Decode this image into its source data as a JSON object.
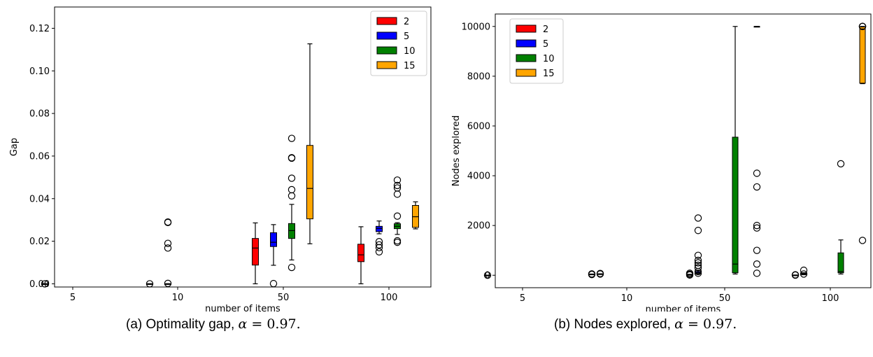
{
  "colors": {
    "2": "#ff0000",
    "5": "#0000ff",
    "10": "#008000",
    "15": "#ffa500"
  },
  "chart_data": [
    {
      "type": "box",
      "caption": {
        "prefix": "(a) Optimality gap, ",
        "alpha_symbol": "α",
        "alpha_value": " = 0.97."
      },
      "xlabel": "number of items",
      "ylabel": "Gap",
      "categories": [
        "5",
        "10",
        "50",
        "100"
      ],
      "ylim": [
        -0.0015,
        0.13
      ],
      "yticks": [
        "0.00",
        "0.02",
        "0.04",
        "0.06",
        "0.08",
        "0.10",
        "0.12"
      ],
      "legend_position": "top-right",
      "series": [
        {
          "name": "2",
          "boxes": [
            {
              "category": "5",
              "whislo": 0,
              "q1": 0,
              "med": 0,
              "q3": 0,
              "whishi": 0,
              "fliers": [
                0
              ]
            },
            {
              "category": "10",
              "whislo": 0,
              "q1": 0,
              "med": 0,
              "q3": 0,
              "whishi": 0,
              "fliers": [
                0
              ]
            },
            {
              "category": "50",
              "whislo": 0.0,
              "q1": 0.0088,
              "med": 0.0168,
              "q3": 0.0213,
              "whishi": 0.0286,
              "fliers": []
            },
            {
              "category": "100",
              "whislo": 0.0,
              "q1": 0.0104,
              "med": 0.0136,
              "q3": 0.0186,
              "whishi": 0.0268,
              "fliers": []
            }
          ]
        },
        {
          "name": "5",
          "boxes": [
            {
              "category": "10",
              "whislo": 0,
              "q1": 0,
              "med": 0,
              "q3": 0,
              "whishi": 0,
              "fliers": [
                0.0288,
                0.029,
                0.019,
                0.0168,
                0.0002
              ]
            },
            {
              "category": "50",
              "whislo": 0.0087,
              "q1": 0.0175,
              "med": 0.0195,
              "q3": 0.024,
              "whishi": 0.0278,
              "fliers": [
                0.0001
              ]
            },
            {
              "category": "100",
              "whislo": 0.0235,
              "q1": 0.0245,
              "med": 0.026,
              "q3": 0.027,
              "whishi": 0.0295,
              "fliers": [
                0.0198,
                0.0183,
                0.017,
                0.015
              ]
            }
          ]
        },
        {
          "name": "10",
          "boxes": [
            {
              "category": "50",
              "whislo": 0.0112,
              "q1": 0.0213,
              "med": 0.025,
              "q3": 0.0283,
              "whishi": 0.0373,
              "fliers": [
                0.0683,
                0.0592,
                0.059,
                0.0496,
                0.0442,
                0.0413,
                0.0077
              ]
            },
            {
              "category": "100",
              "whislo": 0.0232,
              "q1": 0.0259,
              "med": 0.027,
              "q3": 0.0282,
              "whishi": 0.0287,
              "fliers": [
                0.0487,
                0.0462,
                0.045,
                0.0421,
                0.0318,
                0.0202,
                0.0195
              ]
            }
          ]
        },
        {
          "name": "15",
          "boxes": [
            {
              "category": "50",
              "whislo": 0.0188,
              "q1": 0.0305,
              "med": 0.0448,
              "q3": 0.065,
              "whishi": 0.1127,
              "fliers": []
            },
            {
              "category": "100",
              "whislo": 0.0258,
              "q1": 0.0265,
              "med": 0.0315,
              "q3": 0.0368,
              "whishi": 0.0385,
              "fliers": []
            }
          ]
        }
      ]
    },
    {
      "type": "box",
      "caption": {
        "prefix": "(b) Nodes explored, ",
        "alpha_symbol": "α",
        "alpha_value": " = 0.97."
      },
      "xlabel": "number of items",
      "ylabel": "Nodes explored",
      "categories": [
        "5",
        "10",
        "50",
        "100"
      ],
      "ylim": [
        -500,
        10500
      ],
      "yticks": [
        "0",
        "2000",
        "4000",
        "6000",
        "8000",
        "10000"
      ],
      "legend_position": "top-left",
      "series": [
        {
          "name": "2",
          "boxes": [
            {
              "category": "5",
              "whislo": 1,
              "q1": 1,
              "med": 1,
              "q3": 1,
              "whishi": 1,
              "fliers": [
                1
              ]
            },
            {
              "category": "10",
              "whislo": 30,
              "q1": 35,
              "med": 40,
              "q3": 45,
              "whishi": 50,
              "fliers": [
                30,
                55
              ]
            },
            {
              "category": "50",
              "whislo": 10,
              "q1": 20,
              "med": 25,
              "q3": 30,
              "whishi": 40,
              "fliers": [
                10,
                40,
                80
              ]
            },
            {
              "category": "100",
              "whislo": 1,
              "q1": 3,
              "med": 5,
              "q3": 8,
              "whishi": 10,
              "fliers": [
                5,
                20
              ]
            }
          ]
        },
        {
          "name": "5",
          "boxes": [
            {
              "category": "10",
              "whislo": 40,
              "q1": 45,
              "med": 50,
              "q3": 55,
              "whishi": 60,
              "fliers": [
                50,
                70
              ]
            },
            {
              "category": "50",
              "whislo": 60,
              "q1": 80,
              "med": 100,
              "q3": 140,
              "whishi": 200,
              "fliers": [
                2300,
                1800,
                800,
                600,
                500,
                400,
                300,
                150,
                80
              ]
            },
            {
              "category": "100",
              "whislo": 20,
              "q1": 40,
              "med": 60,
              "q3": 80,
              "whishi": 100,
              "fliers": [
                200,
                50
              ]
            }
          ]
        },
        {
          "name": "10",
          "boxes": [
            {
              "category": "50",
              "whislo": 50,
              "q1": 100,
              "med": 450,
              "q3": 5550,
              "whishi": 10000,
              "fliers": []
            },
            {
              "category": "100",
              "whislo": 50,
              "q1": 100,
              "med": 150,
              "q3": 900,
              "whishi": 1420,
              "fliers": [
                4480
              ]
            }
          ]
        },
        {
          "name": "15",
          "boxes": [
            {
              "category": "50",
              "whislo": 10000,
              "q1": 10000,
              "med": 10000,
              "q3": 10000,
              "whishi": 10000,
              "fliers": [
                4100,
                3550,
                2000,
                1900,
                1000,
                450,
                80
              ]
            },
            {
              "category": "100",
              "whislo": 7700,
              "q1": 7720,
              "med": 9900,
              "q3": 9980,
              "whishi": 10000,
              "fliers": [
                10000,
                10000,
                10000,
                1400
              ]
            }
          ]
        }
      ]
    }
  ]
}
